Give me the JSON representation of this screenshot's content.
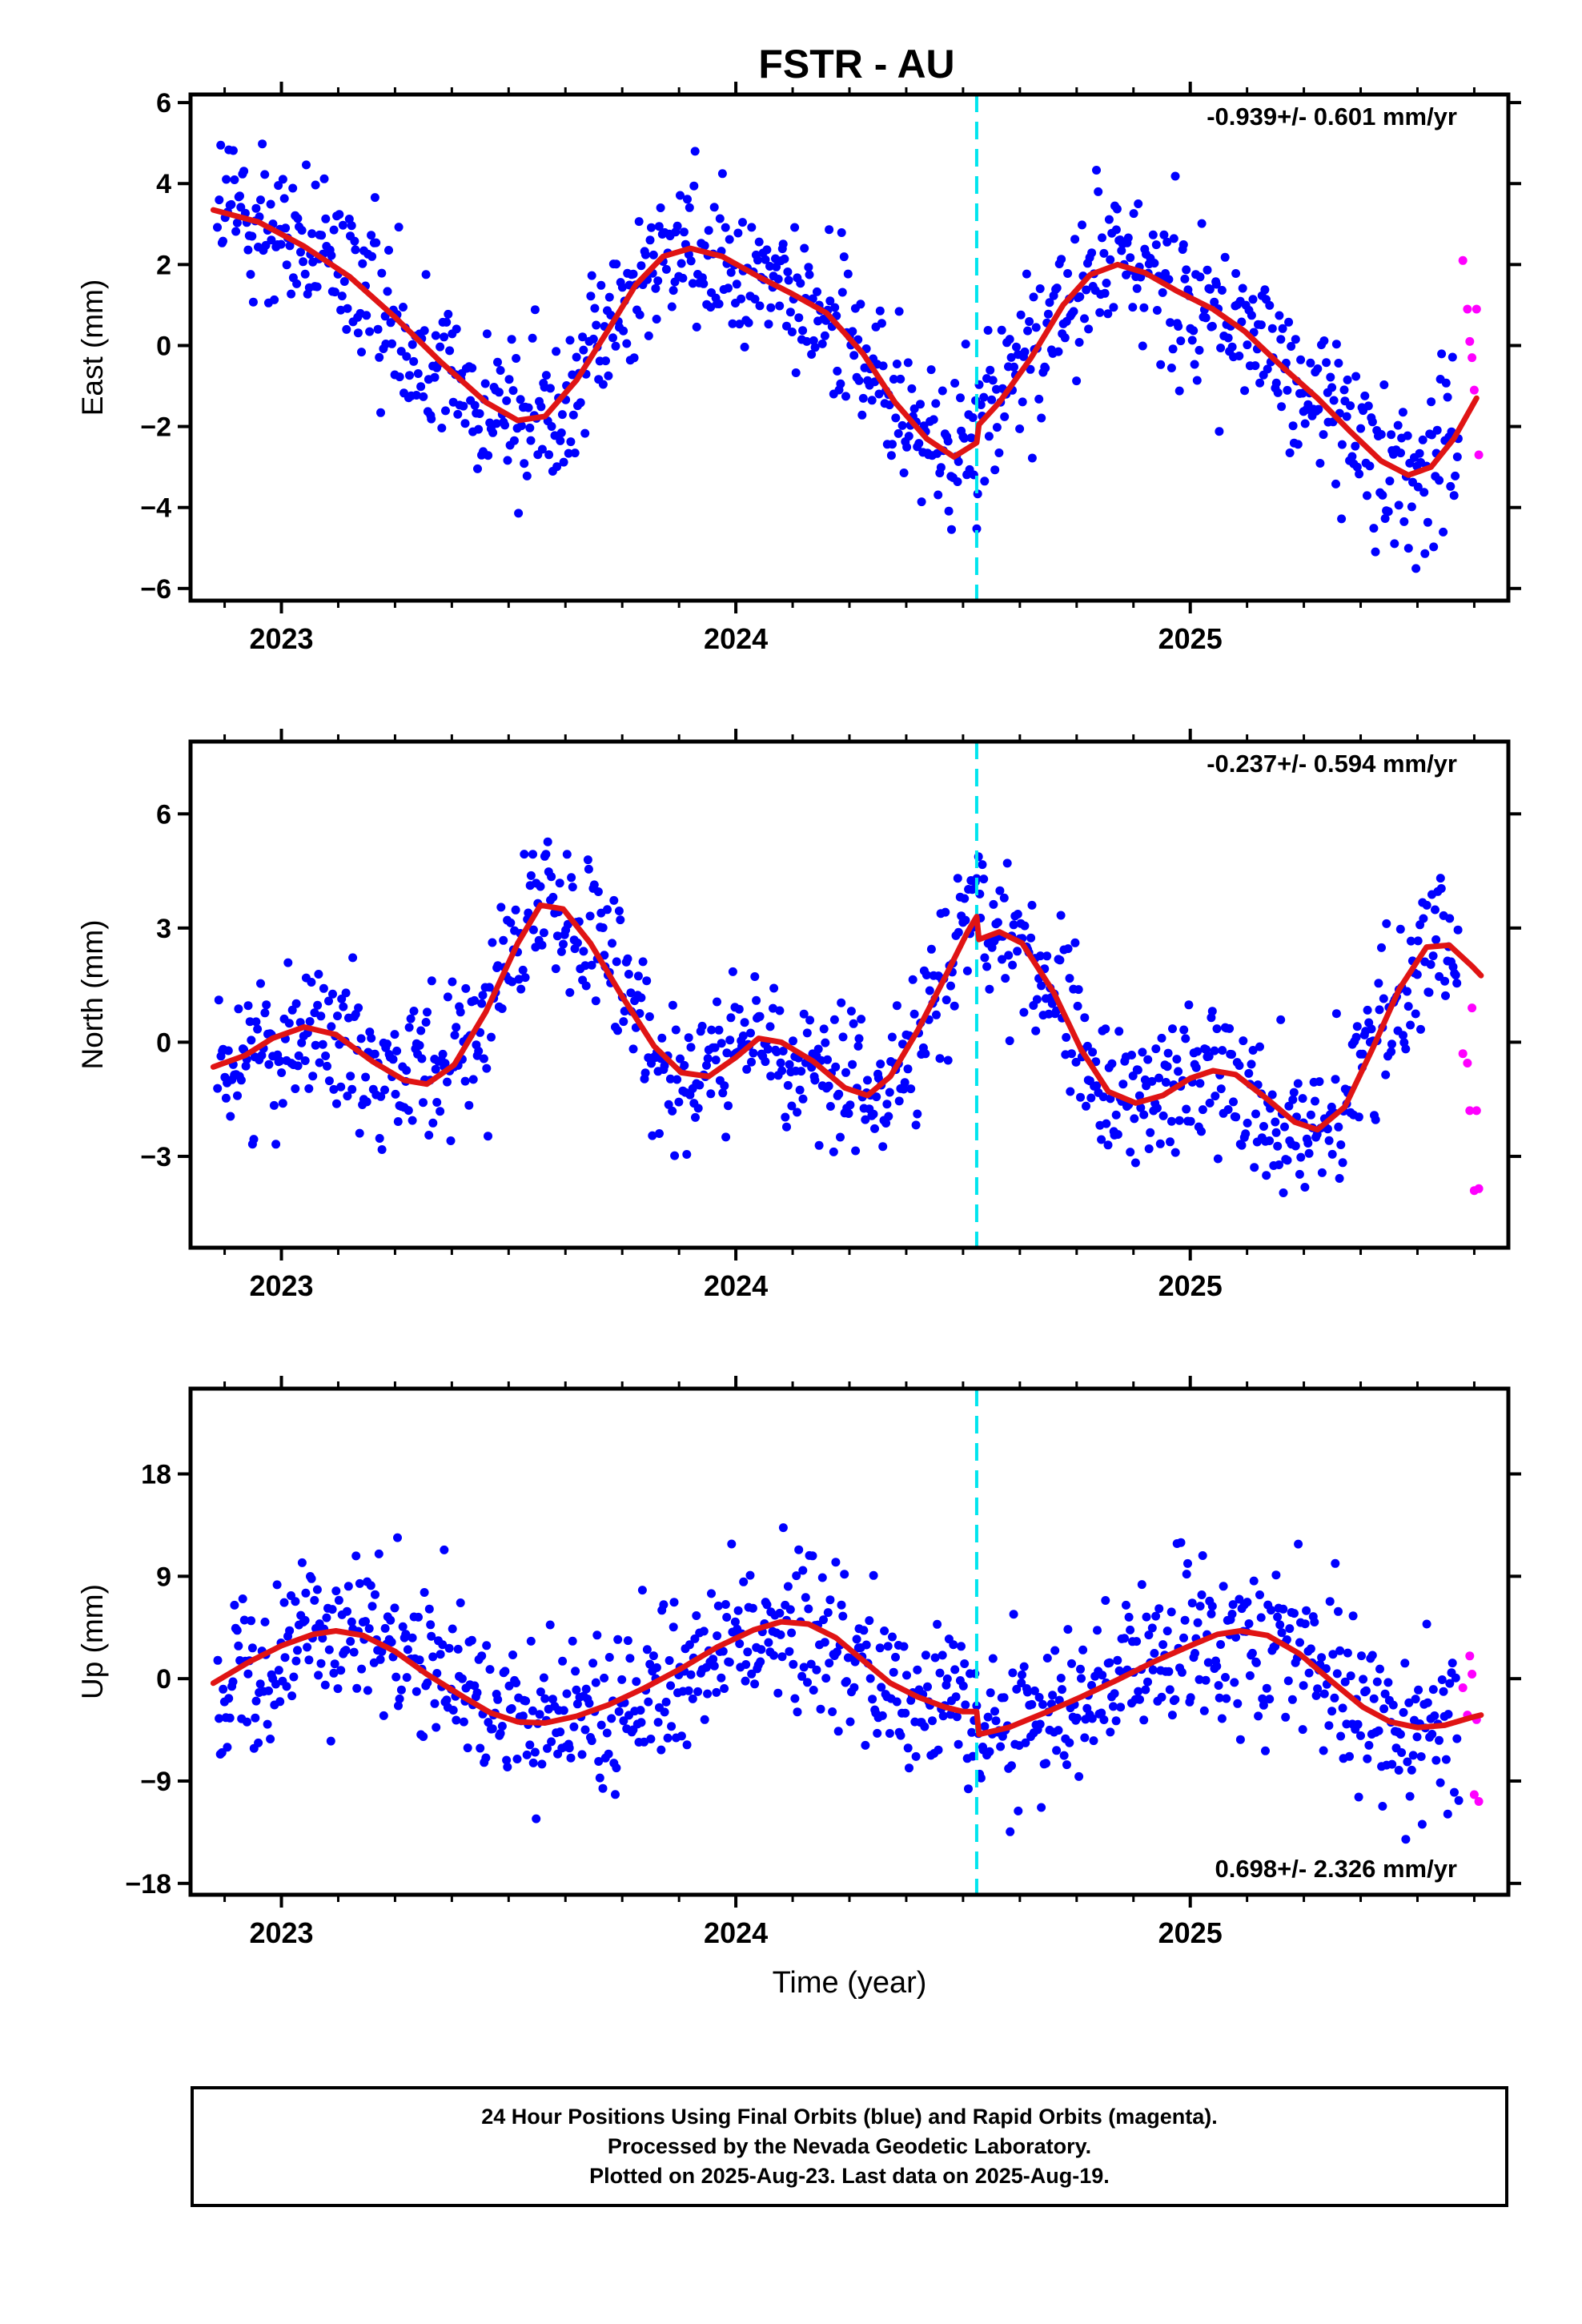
{
  "title": "FSTR - AU",
  "xlabel": "Time (year)",
  "footer": {
    "line1": "24 Hour Positions Using Final Orbits (blue) and Rapid Orbits (magenta).",
    "line2": "Processed by the Nevada Geodetic Laboratory.",
    "line3": "Plotted on 2025-Aug-23. Last data on 2025-Aug-19."
  },
  "colors": {
    "final": "#0000ff",
    "rapid": "#ff00ff",
    "model": "#e01414",
    "event": "#00e5ee"
  },
  "chart_data": [
    {
      "type": "scatter",
      "ylabel": "East (mm)",
      "rate": "-0.939+/- 0.601 mm/yr",
      "xlim": [
        2022.8,
        2025.7
      ],
      "ylim": [
        -6.3,
        6.2
      ],
      "yticks": [
        -6,
        -4,
        -2,
        0,
        2,
        4,
        6
      ],
      "yticklabels": [
        "−6",
        "−4",
        "−2",
        "0",
        "2",
        "4",
        "6"
      ],
      "xticks": [
        2023,
        2024,
        2025
      ],
      "xticklabels": [
        "2023",
        "2024",
        "2025"
      ],
      "event_x": 2024.53,
      "model_curve": [
        [
          2022.85,
          3.35
        ],
        [
          2022.95,
          3.05
        ],
        [
          2023.05,
          2.45
        ],
        [
          2023.15,
          1.7
        ],
        [
          2023.25,
          0.7
        ],
        [
          2023.35,
          -0.4
        ],
        [
          2023.45,
          -1.4
        ],
        [
          2023.52,
          -1.85
        ],
        [
          2023.58,
          -1.75
        ],
        [
          2023.65,
          -0.85
        ],
        [
          2023.72,
          0.4
        ],
        [
          2023.78,
          1.5
        ],
        [
          2023.84,
          2.2
        ],
        [
          2023.9,
          2.4
        ],
        [
          2023.97,
          2.2
        ],
        [
          2024.05,
          1.7
        ],
        [
          2024.12,
          1.3
        ],
        [
          2024.2,
          0.8
        ],
        [
          2024.28,
          -0.2
        ],
        [
          2024.35,
          -1.4
        ],
        [
          2024.42,
          -2.3
        ],
        [
          2024.48,
          -2.75
        ],
        [
          2024.53,
          -2.4
        ],
        [
          2024.535,
          -1.95
        ],
        [
          2024.58,
          -1.4
        ],
        [
          2024.65,
          -0.3
        ],
        [
          2024.72,
          1.0
        ],
        [
          2024.78,
          1.75
        ],
        [
          2024.84,
          2.0
        ],
        [
          2024.9,
          1.8
        ],
        [
          2024.97,
          1.35
        ],
        [
          2025.05,
          0.9
        ],
        [
          2025.12,
          0.35
        ],
        [
          2025.2,
          -0.5
        ],
        [
          2025.28,
          -1.3
        ],
        [
          2025.35,
          -2.1
        ],
        [
          2025.42,
          -2.85
        ],
        [
          2025.48,
          -3.2
        ],
        [
          2025.53,
          -3.0
        ],
        [
          2025.58,
          -2.3
        ],
        [
          2025.63,
          -1.3
        ]
      ],
      "rapid_points": [
        [
          2025.6,
          2.1
        ],
        [
          2025.61,
          0.9
        ],
        [
          2025.615,
          0.1
        ],
        [
          2025.62,
          -0.3
        ],
        [
          2025.625,
          -1.1
        ],
        [
          2025.63,
          0.9
        ],
        [
          2025.635,
          -2.7
        ]
      ]
    },
    {
      "type": "scatter",
      "ylabel": "North (mm)",
      "rate": "-0.237+/- 0.594 mm/yr",
      "xlim": [
        2022.8,
        2025.7
      ],
      "ylim": [
        -5.4,
        7.9
      ],
      "yticks": [
        -3,
        0,
        3,
        6
      ],
      "yticklabels": [
        "−3",
        "0",
        "3",
        "6"
      ],
      "xticks": [
        2023,
        2024,
        2025
      ],
      "xticklabels": [
        "2023",
        "2024",
        "2025"
      ],
      "event_x": 2024.53,
      "model_curve": [
        [
          2022.85,
          -0.65
        ],
        [
          2022.92,
          -0.35
        ],
        [
          2022.98,
          0.1
        ],
        [
          2023.05,
          0.4
        ],
        [
          2023.12,
          0.2
        ],
        [
          2023.2,
          -0.5
        ],
        [
          2023.27,
          -1.0
        ],
        [
          2023.32,
          -1.1
        ],
        [
          2023.38,
          -0.6
        ],
        [
          2023.45,
          0.8
        ],
        [
          2023.52,
          2.6
        ],
        [
          2023.57,
          3.6
        ],
        [
          2023.62,
          3.5
        ],
        [
          2023.68,
          2.6
        ],
        [
          2023.75,
          1.2
        ],
        [
          2023.82,
          -0.1
        ],
        [
          2023.88,
          -0.8
        ],
        [
          2023.94,
          -0.9
        ],
        [
          2024.0,
          -0.4
        ],
        [
          2024.05,
          0.1
        ],
        [
          2024.1,
          0.0
        ],
        [
          2024.17,
          -0.5
        ],
        [
          2024.24,
          -1.2
        ],
        [
          2024.29,
          -1.4
        ],
        [
          2024.34,
          -0.9
        ],
        [
          2024.4,
          0.3
        ],
        [
          2024.46,
          1.7
        ],
        [
          2024.51,
          2.9
        ],
        [
          2024.53,
          3.3
        ],
        [
          2024.535,
          2.7
        ],
        [
          2024.58,
          2.9
        ],
        [
          2024.63,
          2.6
        ],
        [
          2024.7,
          1.3
        ],
        [
          2024.76,
          -0.2
        ],
        [
          2024.82,
          -1.3
        ],
        [
          2024.88,
          -1.6
        ],
        [
          2024.94,
          -1.4
        ],
        [
          2025.0,
          -0.95
        ],
        [
          2025.05,
          -0.75
        ],
        [
          2025.1,
          -0.85
        ],
        [
          2025.17,
          -1.5
        ],
        [
          2025.23,
          -2.1
        ],
        [
          2025.28,
          -2.3
        ],
        [
          2025.34,
          -1.7
        ],
        [
          2025.4,
          -0.2
        ],
        [
          2025.46,
          1.4
        ],
        [
          2025.52,
          2.5
        ],
        [
          2025.57,
          2.55
        ],
        [
          2025.62,
          2.0
        ],
        [
          2025.64,
          1.75
        ]
      ],
      "rapid_points": [
        [
          2025.6,
          -0.3
        ],
        [
          2025.61,
          -0.55
        ],
        [
          2025.615,
          -1.8
        ],
        [
          2025.62,
          0.9
        ],
        [
          2025.625,
          -3.9
        ],
        [
          2025.63,
          -1.8
        ],
        [
          2025.635,
          -3.85
        ]
      ]
    },
    {
      "type": "scatter",
      "ylabel": "Up (mm)",
      "rate": "0.698+/- 2.326 mm/yr",
      "xlim": [
        2022.8,
        2025.7
      ],
      "ylim": [
        -19.0,
        25.5
      ],
      "yticks": [
        -18,
        -9,
        0,
        9,
        18
      ],
      "yticklabels": [
        "−18",
        "−9",
        "0",
        "9",
        "18"
      ],
      "xticks": [
        2023,
        2024,
        2025
      ],
      "xticklabels": [
        "2023",
        "2024",
        "2025"
      ],
      "event_x": 2024.53,
      "model_curve": [
        [
          2022.85,
          -0.4
        ],
        [
          2022.93,
          1.5
        ],
        [
          2023.0,
          2.9
        ],
        [
          2023.07,
          3.9
        ],
        [
          2023.12,
          4.2
        ],
        [
          2023.18,
          3.8
        ],
        [
          2023.25,
          2.4
        ],
        [
          2023.32,
          0.4
        ],
        [
          2023.4,
          -1.6
        ],
        [
          2023.46,
          -3.0
        ],
        [
          2023.52,
          -3.8
        ],
        [
          2023.58,
          -3.9
        ],
        [
          2023.65,
          -3.3
        ],
        [
          2023.72,
          -2.3
        ],
        [
          2023.8,
          -0.8
        ],
        [
          2023.88,
          0.9
        ],
        [
          2023.96,
          2.8
        ],
        [
          2024.04,
          4.3
        ],
        [
          2024.1,
          5.0
        ],
        [
          2024.16,
          4.8
        ],
        [
          2024.22,
          3.6
        ],
        [
          2024.28,
          1.6
        ],
        [
          2024.34,
          -0.4
        ],
        [
          2024.4,
          -1.6
        ],
        [
          2024.46,
          -2.5
        ],
        [
          2024.5,
          -2.9
        ],
        [
          2024.53,
          -2.9
        ],
        [
          2024.535,
          -4.9
        ],
        [
          2024.6,
          -4.3
        ],
        [
          2024.68,
          -3.0
        ],
        [
          2024.76,
          -1.6
        ],
        [
          2024.84,
          -0.1
        ],
        [
          2024.92,
          1.5
        ],
        [
          2025.0,
          2.9
        ],
        [
          2025.06,
          3.9
        ],
        [
          2025.11,
          4.2
        ],
        [
          2025.17,
          3.8
        ],
        [
          2025.24,
          2.2
        ],
        [
          2025.31,
          -0.2
        ],
        [
          2025.38,
          -2.5
        ],
        [
          2025.44,
          -3.8
        ],
        [
          2025.5,
          -4.3
        ],
        [
          2025.56,
          -4.1
        ],
        [
          2025.62,
          -3.4
        ],
        [
          2025.64,
          -3.2
        ]
      ],
      "rapid_points": [
        [
          2025.6,
          -0.8
        ],
        [
          2025.61,
          -3.2
        ],
        [
          2025.615,
          2.0
        ],
        [
          2025.62,
          0.4
        ],
        [
          2025.625,
          -10.2
        ],
        [
          2025.63,
          -3.6
        ],
        [
          2025.635,
          -10.8
        ]
      ]
    }
  ]
}
